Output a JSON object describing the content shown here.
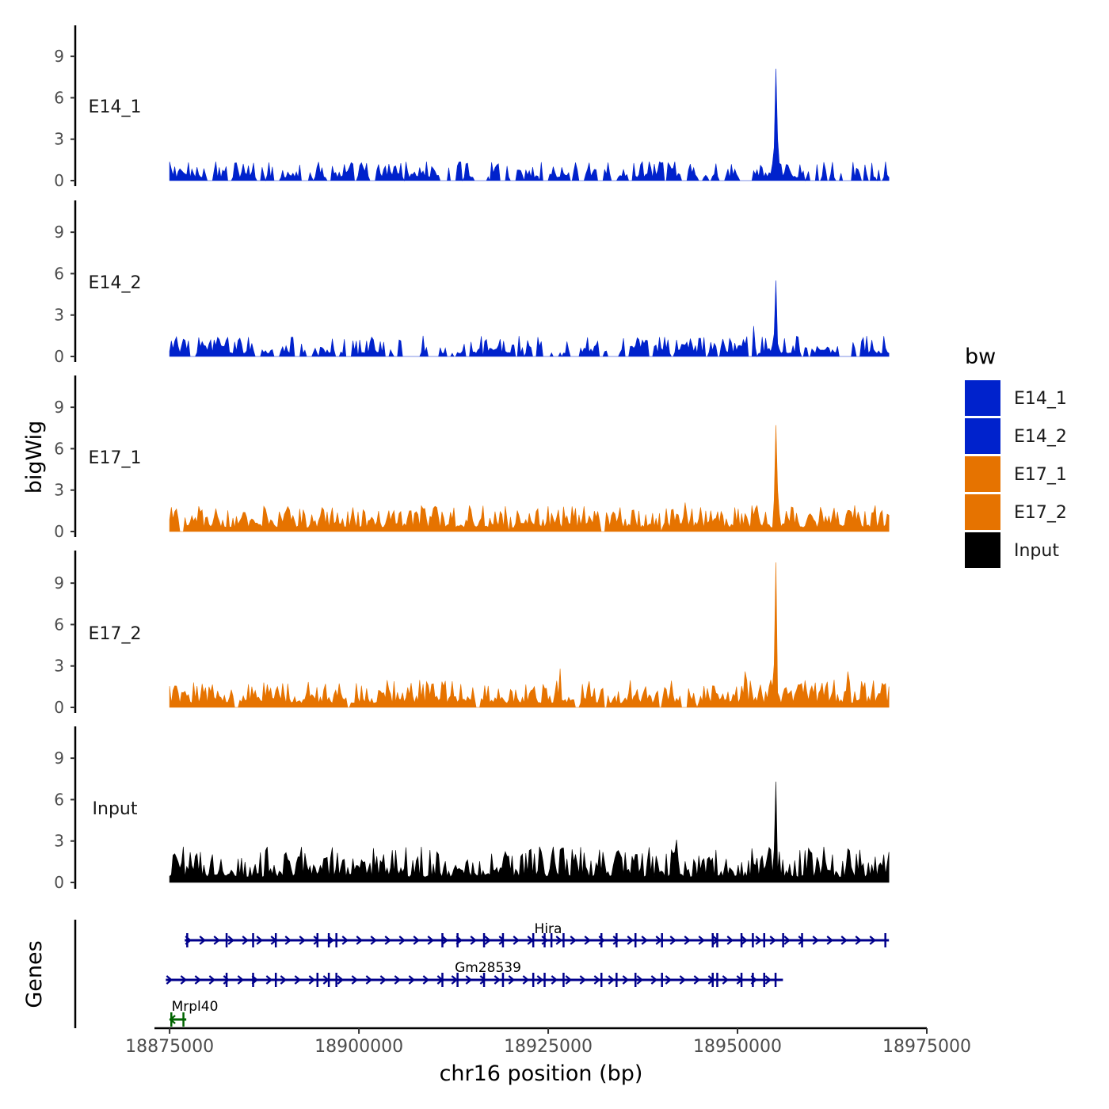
{
  "chart_data": {
    "type": "area",
    "title": "",
    "xlabel": "chr16 position (bp)",
    "ylabel": "bigWig",
    "genes_label": "Genes",
    "x_range": [
      18873000,
      18975000
    ],
    "data_range": [
      18875000,
      18970000
    ],
    "x_ticks": [
      18875000,
      18900000,
      18925000,
      18950000,
      18975000
    ],
    "x_tick_labels": [
      "18875000",
      "18900000",
      "18925000",
      "18950000",
      "18975000"
    ],
    "y_range": [
      0,
      11
    ],
    "y_ticks": [
      0,
      3,
      6,
      9
    ],
    "y_tick_labels": [
      "0",
      "3",
      "6",
      "9"
    ],
    "legend": {
      "title": "bw",
      "entries": [
        {
          "label": "E14_1",
          "color": "#0022CC"
        },
        {
          "label": "E14_2",
          "color": "#0022CC"
        },
        {
          "label": "E17_1",
          "color": "#E67300"
        },
        {
          "label": "E17_2",
          "color": "#E67300"
        },
        {
          "label": "Input",
          "color": "#000000"
        }
      ]
    },
    "series": [
      {
        "name": "E14_1",
        "color": "#0022CC",
        "baseline_max": 1.4,
        "gap_rate": 0.42,
        "peaks": [
          {
            "x": 18955000,
            "y": 8.1
          },
          {
            "x": 18955350,
            "y": 3.0
          }
        ]
      },
      {
        "name": "E14_2",
        "color": "#0022CC",
        "baseline_max": 1.5,
        "gap_rate": 0.38,
        "peaks": [
          {
            "x": 18955000,
            "y": 5.5
          },
          {
            "x": 18952200,
            "y": 2.2
          }
        ]
      },
      {
        "name": "E17_1",
        "color": "#E67300",
        "baseline_max": 1.9,
        "gap_rate": 0.04,
        "peaks": [
          {
            "x": 18955000,
            "y": 7.7
          },
          {
            "x": 18955400,
            "y": 3.0
          },
          {
            "x": 18943000,
            "y": 2.1
          }
        ]
      },
      {
        "name": "E17_2",
        "color": "#E67300",
        "baseline_max": 2.0,
        "gap_rate": 0.05,
        "peaks": [
          {
            "x": 18955000,
            "y": 10.5
          },
          {
            "x": 18951000,
            "y": 2.6
          },
          {
            "x": 18926500,
            "y": 2.8
          },
          {
            "x": 18964500,
            "y": 2.6
          }
        ]
      },
      {
        "name": "Input",
        "color": "#000000",
        "baseline_max": 2.6,
        "gap_rate": 0.0,
        "peaks": [
          {
            "x": 18955000,
            "y": 7.3
          },
          {
            "x": 18942000,
            "y": 3.1
          }
        ]
      }
    ],
    "genes": [
      {
        "name": "Hira",
        "color": "#00008B",
        "start": 18877000,
        "end": 18970000,
        "strand": "+",
        "exons": [
          18877300,
          18882500,
          18886000,
          18889000,
          18894500,
          18896000,
          18897000,
          18911000,
          18913000,
          18916500,
          18919000,
          18923000,
          18924500,
          18925400,
          18927000,
          18932000,
          18934000,
          18936500,
          18940000,
          18946700,
          18947300,
          18950500,
          18952000,
          18953500,
          18956000,
          18958500,
          18969500
        ]
      },
      {
        "name": "Gm28539",
        "color": "#00008B",
        "start": 18874500,
        "end": 18956000,
        "strand": "+",
        "exons": [
          18882500,
          18886000,
          18889000,
          18894500,
          18896000,
          18897000,
          18911000,
          18913000,
          18916500,
          18919000,
          18923000,
          18924500,
          18927000,
          18932000,
          18934000,
          18936500,
          18940000,
          18946700,
          18947300,
          18950500,
          18952000,
          18953500,
          18955000
        ]
      },
      {
        "name": "Mrpl40",
        "color": "#006400",
        "start": 18875000,
        "end": 18877200,
        "strand": "-",
        "exons": [
          18875200,
          18876800
        ]
      }
    ]
  }
}
